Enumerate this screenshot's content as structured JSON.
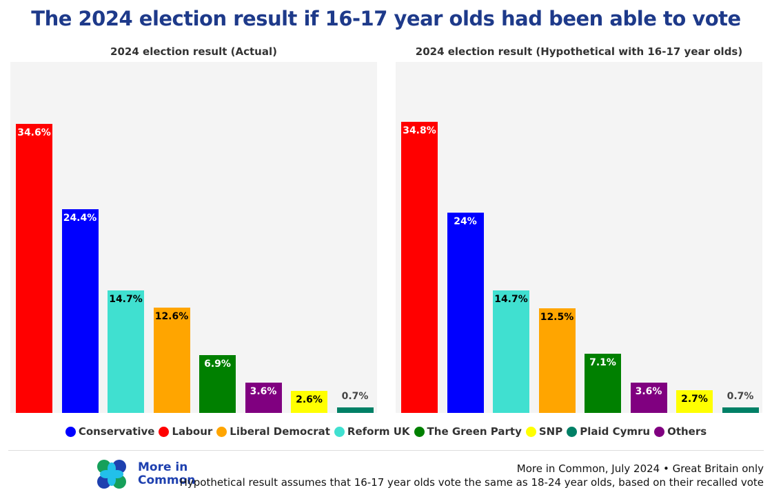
{
  "title": "The 2024 election result if 16-17 year olds had been able to vote",
  "chart_data": [
    {
      "type": "bar",
      "title": "2024 election result (Actual)",
      "categories": [
        "Labour",
        "Conservative",
        "Reform UK",
        "Liberal Democrat",
        "The Green Party",
        "Others",
        "SNP",
        "Plaid Cymru"
      ],
      "values": [
        34.6,
        24.4,
        14.7,
        12.6,
        6.9,
        3.6,
        2.6,
        0.7
      ],
      "labels": [
        "34.6%",
        "24.4%",
        "14.7%",
        "12.6%",
        "6.9%",
        "3.6%",
        "2.6%",
        "0.7%"
      ],
      "ylim": [
        0,
        42
      ],
      "grid": false
    },
    {
      "type": "bar",
      "title": "2024 election result (Hypothetical with 16-17 year olds)",
      "categories": [
        "Labour",
        "Conservative",
        "Reform UK",
        "Liberal Democrat",
        "The Green Party",
        "Others",
        "SNP",
        "Plaid Cymru"
      ],
      "values": [
        34.8,
        24,
        14.7,
        12.5,
        7.1,
        3.6,
        2.7,
        0.7
      ],
      "labels": [
        "34.8%",
        "24%",
        "14.7%",
        "12.5%",
        "7.1%",
        "3.6%",
        "2.7%",
        "0.7%"
      ],
      "ylim": [
        0,
        42
      ],
      "grid": false
    }
  ],
  "colors": {
    "Labour": "#ff0000",
    "Conservative": "#0000ff",
    "Reform UK": "#40e0d0",
    "Liberal Democrat": "#ffa500",
    "The Green Party": "#008000",
    "Others": "#800080",
    "SNP": "#ffff00",
    "Plaid Cymru": "#008066"
  },
  "legend": [
    "Conservative",
    "Labour",
    "Liberal Democrat",
    "Reform UK",
    "The Green Party",
    "SNP",
    "Plaid Cymru",
    "Others"
  ],
  "logo": {
    "line1": "More in",
    "line2": "Common"
  },
  "source": "More in Common, July 2024 • Great Britain only",
  "note": "Hypothetical result assumes that 16-17 year olds vote the same as 18-24 year olds, based on their recalled vote"
}
